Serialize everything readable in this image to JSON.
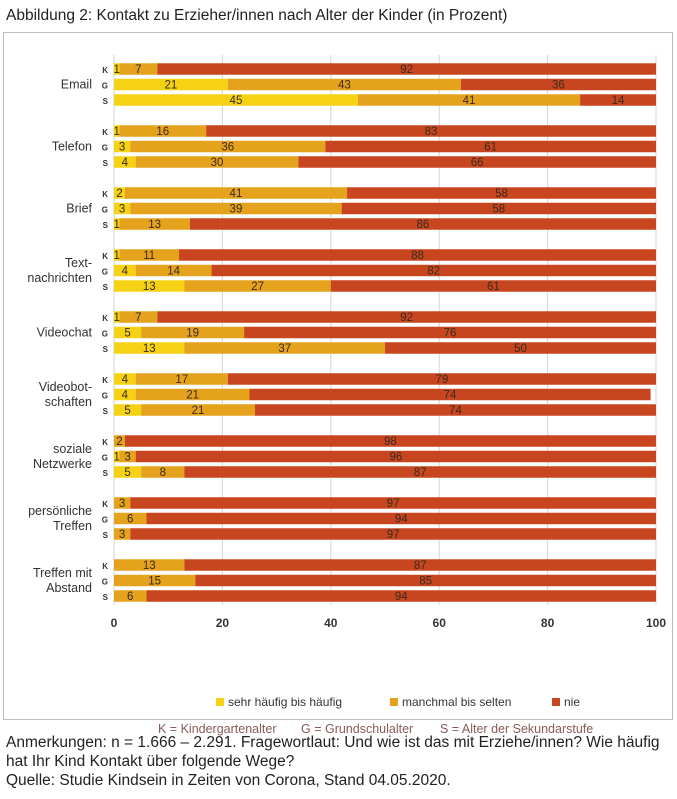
{
  "title": "Abbildung 2: Kontakt zu Erzieher/innen nach Alter der Kinder (in Prozent)",
  "legend": [
    {
      "label": "sehr häufig bis häufig",
      "color": "#f5d314"
    },
    {
      "label": "manchmal bis selten",
      "color": "#e5a21d"
    },
    {
      "label": "nie",
      "color": "#c8461f"
    }
  ],
  "age_key": [
    {
      "label": "K = Kindergartenalter"
    },
    {
      "label": "G = Grundschulalter"
    },
    {
      "label": "S = Alter der Sekundarstufe"
    }
  ],
  "notes": {
    "line1": "Anmerkungen: n = 1.666 – 2.291. Fragewortlaut: Und wie ist das mit Erziehe/innen? Wie häufig hat Ihr Kind Kontakt über folgende Wege?",
    "line2": "Quelle: Studie Kindsein in Zeiten von Corona, Stand 04.05.2020."
  },
  "chart_data": {
    "type": "bar",
    "orientation": "horizontal",
    "stacked": true,
    "xlim": [
      0,
      100
    ],
    "xticks": [
      "0",
      "20",
      "40",
      "60",
      "80",
      "100"
    ],
    "grid": true,
    "legend_position": "bottom",
    "series_names": [
      "sehr häufig bis häufig",
      "manchmal bis selten",
      "nie"
    ],
    "groups": [
      {
        "label": [
          "Email"
        ],
        "rows": [
          {
            "code": "K",
            "values": [
              1,
              7,
              92
            ]
          },
          {
            "code": "G",
            "values": [
              21,
              43,
              36
            ]
          },
          {
            "code": "S",
            "values": [
              45,
              41,
              14
            ]
          }
        ]
      },
      {
        "label": [
          "Telefon"
        ],
        "rows": [
          {
            "code": "K",
            "values": [
              1,
              16,
              83
            ]
          },
          {
            "code": "G",
            "values": [
              3,
              36,
              61
            ]
          },
          {
            "code": "S",
            "values": [
              4,
              30,
              66
            ]
          }
        ]
      },
      {
        "label": [
          "Brief"
        ],
        "rows": [
          {
            "code": "K",
            "values": [
              2,
              41,
              58
            ]
          },
          {
            "code": "G",
            "values": [
              3,
              39,
              58
            ]
          },
          {
            "code": "S",
            "values": [
              1,
              13,
              86
            ]
          }
        ]
      },
      {
        "label": [
          "Text-",
          "nachrichten"
        ],
        "rows": [
          {
            "code": "K",
            "values": [
              1,
              11,
              88
            ]
          },
          {
            "code": "G",
            "values": [
              4,
              14,
              82
            ]
          },
          {
            "code": "S",
            "values": [
              13,
              27,
              61
            ]
          }
        ]
      },
      {
        "label": [
          "Videochat"
        ],
        "rows": [
          {
            "code": "K",
            "values": [
              1,
              7,
              92
            ]
          },
          {
            "code": "G",
            "values": [
              5,
              19,
              76
            ]
          },
          {
            "code": "S",
            "values": [
              13,
              37,
              50
            ]
          }
        ]
      },
      {
        "label": [
          "Videobot-",
          "schaften"
        ],
        "rows": [
          {
            "code": "K",
            "values": [
              4,
              17,
              79
            ]
          },
          {
            "code": "G",
            "values": [
              4,
              21,
              74
            ]
          },
          {
            "code": "S",
            "values": [
              5,
              21,
              74
            ]
          }
        ]
      },
      {
        "label": [
          "soziale",
          "Netzwerke"
        ],
        "rows": [
          {
            "code": "K",
            "values": [
              0,
              2,
              98
            ]
          },
          {
            "code": "G",
            "values": [
              1,
              3,
              96
            ]
          },
          {
            "code": "S",
            "values": [
              5,
              8,
              87
            ]
          }
        ]
      },
      {
        "label": [
          "persönliche",
          "Treffen"
        ],
        "rows": [
          {
            "code": "K",
            "values": [
              0,
              3,
              97
            ]
          },
          {
            "code": "G",
            "values": [
              0,
              6,
              94
            ]
          },
          {
            "code": "S",
            "values": [
              0,
              3,
              97
            ]
          }
        ]
      },
      {
        "label": [
          "Treffen mit",
          "Abstand"
        ],
        "rows": [
          {
            "code": "K",
            "values": [
              0,
              13,
              87
            ]
          },
          {
            "code": "G",
            "values": [
              0,
              15,
              85
            ]
          },
          {
            "code": "S",
            "values": [
              0,
              6,
              94
            ]
          }
        ]
      }
    ]
  }
}
